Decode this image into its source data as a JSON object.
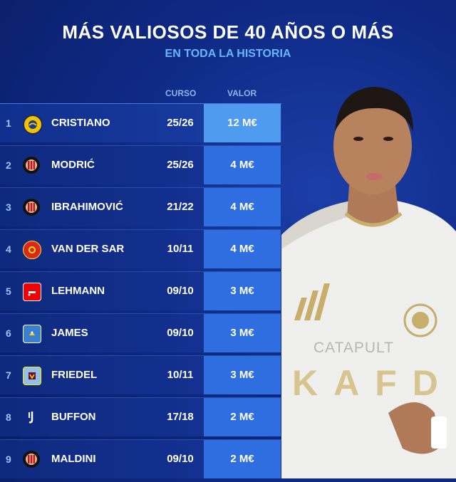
{
  "header": {
    "title": "MÁS VALIOSOS DE 40 AÑOS O MÁS",
    "subtitle": "EN TODA LA HISTORIA"
  },
  "columns": {
    "curso": "CURSO",
    "valor": "VALOR"
  },
  "rows": [
    {
      "rank": "1",
      "name": "CRISTIANO",
      "season": "25/26",
      "value": "12 M€",
      "club_icon": "al-nassr-badge-icon"
    },
    {
      "rank": "2",
      "name": "MODRIĆ",
      "season": "25/26",
      "value": "4 M€",
      "club_icon": "ac-milan-badge-icon"
    },
    {
      "rank": "3",
      "name": "IBRAHIMOVIĆ",
      "season": "21/22",
      "value": "4 M€",
      "club_icon": "ac-milan-badge-icon"
    },
    {
      "rank": "4",
      "name": "VAN DER SAR",
      "season": "10/11",
      "value": "4 M€",
      "club_icon": "man-united-badge-icon"
    },
    {
      "rank": "5",
      "name": "LEHMANN",
      "season": "09/10",
      "value": "3 M€",
      "club_icon": "arsenal-badge-icon"
    },
    {
      "rank": "6",
      "name": "JAMES",
      "season": "09/10",
      "value": "3 M€",
      "club_icon": "portsmouth-badge-icon"
    },
    {
      "rank": "7",
      "name": "FRIEDEL",
      "season": "10/11",
      "value": "3 M€",
      "club_icon": "aston-villa-badge-icon"
    },
    {
      "rank": "8",
      "name": "BUFFON",
      "season": "17/18",
      "value": "2 M€",
      "club_icon": "juventus-badge-icon"
    },
    {
      "rank": "9",
      "name": "MALDINI",
      "season": "09/10",
      "value": "2 M€",
      "club_icon": "ac-milan-badge-icon"
    }
  ],
  "player_shirt": {
    "sponsor": "CATAPULT",
    "sponsor2": "KAFD"
  },
  "colors": {
    "background": "#0f2a86",
    "value_cell": "#2f6ee0",
    "value_cell_top": "#4f9bf0",
    "subtitle": "#67b6ff"
  }
}
